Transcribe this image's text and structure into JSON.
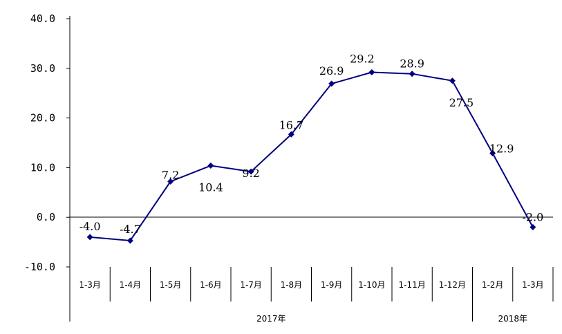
{
  "chart_data": {
    "type": "line",
    "title": "",
    "xlabel": "",
    "ylabel": "",
    "ylim": [
      -10,
      40
    ],
    "yticks": [
      "40.0",
      "30.0",
      "20.0",
      "10.0",
      "0.0",
      "-10.0"
    ],
    "grid": false,
    "legend": "none",
    "categories": [
      "1-3月",
      "1-4月",
      "1-5月",
      "1-6月",
      "1-7月",
      "1-8月",
      "1-9月",
      "1-10月",
      "1-11月",
      "1-12月",
      "1-2月",
      "1-3月"
    ],
    "groups": [
      {
        "label": "2017年",
        "count": 10
      },
      {
        "label": "2018年",
        "count": 2
      }
    ],
    "series": [
      {
        "values": [
          -4.0,
          -4.7,
          7.2,
          10.4,
          9.2,
          16.7,
          26.9,
          29.2,
          28.9,
          27.5,
          12.9,
          -2.0
        ],
        "labels": [
          "-4.0",
          "-4.7",
          "7.2",
          "10.4",
          "9.2",
          "16.7",
          "26.9",
          "29.2",
          "28.9",
          "27.5",
          "12.9",
          "-2.0"
        ],
        "color": "#000080"
      }
    ]
  }
}
